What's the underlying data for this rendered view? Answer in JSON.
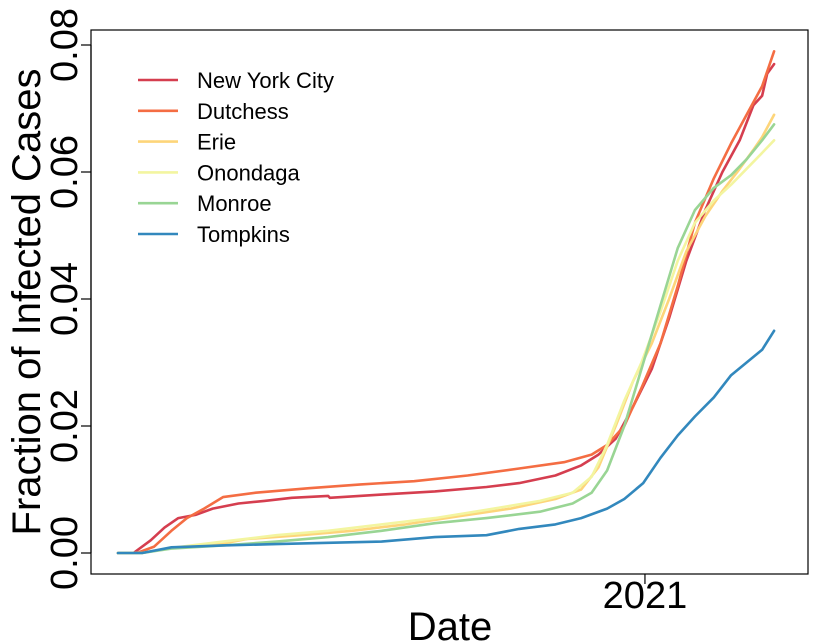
{
  "chart_data": {
    "type": "line",
    "title": "",
    "xlabel": "Date",
    "ylabel": "Fraction of Infected Cases",
    "ylim": [
      0,
      0.08
    ],
    "yticks": [
      0.0,
      0.02,
      0.04,
      0.06,
      0.08
    ],
    "ytick_labels": [
      "0.00",
      "0.02",
      "0.04",
      "0.06",
      "0.08"
    ],
    "xlim": [
      "2020-03-01",
      "2021-03-21"
    ],
    "xticks": [
      {
        "value": "2021-01-01",
        "label": "2021"
      }
    ],
    "grid": false,
    "legend_position": "top-left",
    "series": [
      {
        "name": "New York City",
        "color": "#d53e4f",
        "points": [
          [
            "2020-03-01",
            0.0
          ],
          [
            "2020-03-10",
            0.0
          ],
          [
            "2020-03-20",
            0.002
          ],
          [
            "2020-03-28",
            0.004
          ],
          [
            "2020-04-05",
            0.0055
          ],
          [
            "2020-04-15",
            0.006
          ],
          [
            "2020-04-25",
            0.007
          ],
          [
            "2020-05-10",
            0.0078
          ],
          [
            "2020-05-25",
            0.0082
          ],
          [
            "2020-06-10",
            0.0087
          ],
          [
            "2020-07-01",
            0.009
          ],
          [
            "2020-07-02",
            0.0087
          ],
          [
            "2020-08-01",
            0.0092
          ],
          [
            "2020-09-01",
            0.0097
          ],
          [
            "2020-10-01",
            0.0104
          ],
          [
            "2020-10-20",
            0.011
          ],
          [
            "2020-11-10",
            0.0122
          ],
          [
            "2020-11-25",
            0.0138
          ],
          [
            "2020-12-05",
            0.0155
          ],
          [
            "2020-12-15",
            0.018
          ],
          [
            "2020-12-25",
            0.023
          ],
          [
            "2021-01-05",
            0.029
          ],
          [
            "2021-01-15",
            0.037
          ],
          [
            "2021-01-25",
            0.046
          ],
          [
            "2021-02-05",
            0.054
          ],
          [
            "2021-02-15",
            0.06
          ],
          [
            "2021-02-25",
            0.065
          ],
          [
            "2021-03-05",
            0.0705
          ],
          [
            "2021-03-10",
            0.072
          ],
          [
            "2021-03-13",
            0.0755
          ],
          [
            "2021-03-17",
            0.077
          ]
        ]
      },
      {
        "name": "Dutchess",
        "color": "#f46d43",
        "points": [
          [
            "2020-03-01",
            0.0
          ],
          [
            "2020-03-12",
            0.0
          ],
          [
            "2020-03-22",
            0.001
          ],
          [
            "2020-04-01",
            0.0035
          ],
          [
            "2020-04-10",
            0.0055
          ],
          [
            "2020-04-20",
            0.007
          ],
          [
            "2020-05-01",
            0.0088
          ],
          [
            "2020-05-20",
            0.0095
          ],
          [
            "2020-06-20",
            0.0102
          ],
          [
            "2020-07-20",
            0.0108
          ],
          [
            "2020-08-20",
            0.0113
          ],
          [
            "2020-09-20",
            0.0122
          ],
          [
            "2020-10-20",
            0.0133
          ],
          [
            "2020-11-15",
            0.0143
          ],
          [
            "2020-12-01",
            0.0155
          ],
          [
            "2020-12-10",
            0.017
          ],
          [
            "2020-12-20",
            0.02
          ],
          [
            "2020-12-30",
            0.026
          ],
          [
            "2021-01-10",
            0.033
          ],
          [
            "2021-01-20",
            0.042
          ],
          [
            "2021-01-30",
            0.052
          ],
          [
            "2021-02-10",
            0.059
          ],
          [
            "2021-02-20",
            0.0645
          ],
          [
            "2021-03-01",
            0.069
          ],
          [
            "2021-03-10",
            0.0735
          ],
          [
            "2021-03-17",
            0.079
          ]
        ]
      },
      {
        "name": "Erie",
        "color": "#fdd57a",
        "points": [
          [
            "2020-03-01",
            0.0
          ],
          [
            "2020-03-15",
            0.0
          ],
          [
            "2020-04-01",
            0.0008
          ],
          [
            "2020-05-01",
            0.0015
          ],
          [
            "2020-05-15",
            0.0022
          ],
          [
            "2020-06-15",
            0.0028
          ],
          [
            "2020-07-15",
            0.0035
          ],
          [
            "2020-08-15",
            0.0045
          ],
          [
            "2020-09-15",
            0.0058
          ],
          [
            "2020-10-15",
            0.007
          ],
          [
            "2020-11-10",
            0.0085
          ],
          [
            "2020-11-25",
            0.01
          ],
          [
            "2020-12-05",
            0.0135
          ],
          [
            "2020-12-15",
            0.02
          ],
          [
            "2020-12-25",
            0.027
          ],
          [
            "2021-01-05",
            0.033
          ],
          [
            "2021-01-15",
            0.04
          ],
          [
            "2021-01-25",
            0.0475
          ],
          [
            "2021-02-05",
            0.053
          ],
          [
            "2021-02-15",
            0.057
          ],
          [
            "2021-02-25",
            0.0605
          ],
          [
            "2021-03-05",
            0.0635
          ],
          [
            "2021-03-10",
            0.0655
          ],
          [
            "2021-03-17",
            0.069
          ]
        ]
      },
      {
        "name": "Onondaga",
        "color": "#f3f5a0",
        "points": [
          [
            "2020-03-01",
            0.0
          ],
          [
            "2020-03-15",
            0.0
          ],
          [
            "2020-04-01",
            0.0008
          ],
          [
            "2020-05-01",
            0.0018
          ],
          [
            "2020-06-01",
            0.0028
          ],
          [
            "2020-07-01",
            0.0035
          ],
          [
            "2020-08-01",
            0.0045
          ],
          [
            "2020-09-01",
            0.0055
          ],
          [
            "2020-10-01",
            0.0068
          ],
          [
            "2020-11-01",
            0.0082
          ],
          [
            "2020-11-20",
            0.0095
          ],
          [
            "2020-12-01",
            0.012
          ],
          [
            "2020-12-10",
            0.017
          ],
          [
            "2020-12-20",
            0.024
          ],
          [
            "2020-12-30",
            0.03
          ],
          [
            "2021-01-10",
            0.038
          ],
          [
            "2021-01-20",
            0.046
          ],
          [
            "2021-01-30",
            0.052
          ],
          [
            "2021-02-10",
            0.0555
          ],
          [
            "2021-02-20",
            0.058
          ],
          [
            "2021-03-01",
            0.0605
          ],
          [
            "2021-03-10",
            0.063
          ],
          [
            "2021-03-17",
            0.065
          ]
        ]
      },
      {
        "name": "Monroe",
        "color": "#99d594",
        "points": [
          [
            "2020-03-01",
            0.0
          ],
          [
            "2020-03-15",
            0.0
          ],
          [
            "2020-04-01",
            0.0007
          ],
          [
            "2020-05-01",
            0.0012
          ],
          [
            "2020-06-01",
            0.0018
          ],
          [
            "2020-07-01",
            0.0025
          ],
          [
            "2020-08-01",
            0.0035
          ],
          [
            "2020-09-01",
            0.0047
          ],
          [
            "2020-10-01",
            0.0055
          ],
          [
            "2020-11-01",
            0.0065
          ],
          [
            "2020-11-20",
            0.0078
          ],
          [
            "2020-12-01",
            0.0095
          ],
          [
            "2020-12-10",
            0.013
          ],
          [
            "2020-12-20",
            0.02
          ],
          [
            "2020-12-30",
            0.029
          ],
          [
            "2021-01-10",
            0.039
          ],
          [
            "2021-01-20",
            0.048
          ],
          [
            "2021-01-30",
            0.054
          ],
          [
            "2021-02-10",
            0.0575
          ],
          [
            "2021-02-20",
            0.0595
          ],
          [
            "2021-03-01",
            0.062
          ],
          [
            "2021-03-10",
            0.065
          ],
          [
            "2021-03-17",
            0.0675
          ]
        ]
      },
      {
        "name": "Tompkins",
        "color": "#3288bd",
        "points": [
          [
            "2020-03-01",
            0.0
          ],
          [
            "2020-03-15",
            0.0
          ],
          [
            "2020-04-01",
            0.0009
          ],
          [
            "2020-05-01",
            0.0012
          ],
          [
            "2020-06-01",
            0.0014
          ],
          [
            "2020-07-01",
            0.0016
          ],
          [
            "2020-08-01",
            0.0018
          ],
          [
            "2020-09-01",
            0.0025
          ],
          [
            "2020-10-01",
            0.0028
          ],
          [
            "2020-10-20",
            0.0038
          ],
          [
            "2020-11-10",
            0.0045
          ],
          [
            "2020-11-25",
            0.0055
          ],
          [
            "2020-12-10",
            0.007
          ],
          [
            "2020-12-20",
            0.0085
          ],
          [
            "2020-12-31",
            0.011
          ],
          [
            "2021-01-10",
            0.015
          ],
          [
            "2021-01-20",
            0.0185
          ],
          [
            "2021-01-30",
            0.0215
          ],
          [
            "2021-02-10",
            0.0245
          ],
          [
            "2021-02-20",
            0.028
          ],
          [
            "2021-03-01",
            0.03
          ],
          [
            "2021-03-10",
            0.032
          ],
          [
            "2021-03-17",
            0.035
          ]
        ]
      }
    ]
  }
}
